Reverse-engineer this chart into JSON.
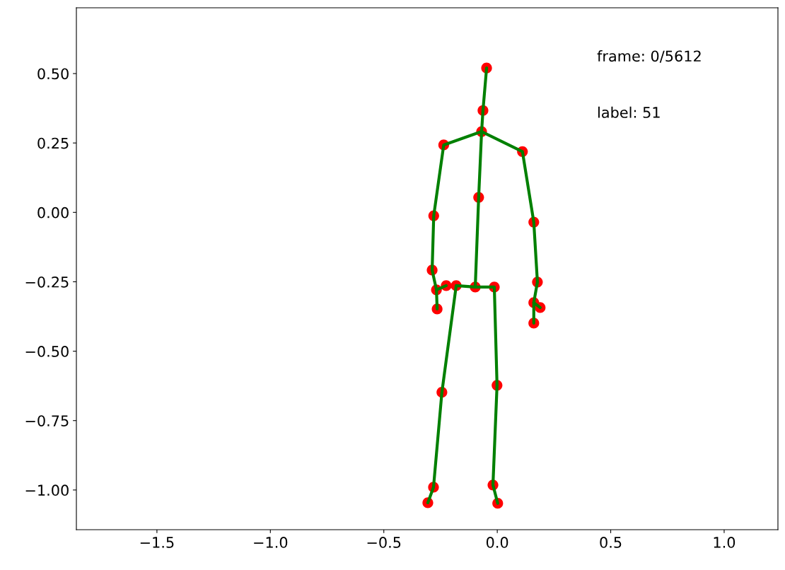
{
  "chart_data": {
    "type": "scatter",
    "xlim": [
      -1.855,
      1.237
    ],
    "ylim": [
      -1.143,
      0.737
    ],
    "xticks": [
      {
        "value": -1.5,
        "label": "−1.5"
      },
      {
        "value": -1.0,
        "label": "−1.0"
      },
      {
        "value": -0.5,
        "label": "−0.5"
      },
      {
        "value": 0.0,
        "label": "0.0"
      },
      0.5,
      {
        "value": 1.0,
        "label": "1.0"
      }
    ],
    "yticks": [
      {
        "value": -1.0,
        "label": "−1.00"
      },
      {
        "value": -0.75,
        "label": "−0.75"
      },
      {
        "value": -0.5,
        "label": "−0.50"
      },
      {
        "value": -0.25,
        "label": "−0.25"
      },
      {
        "value": 0.0,
        "label": "0.00"
      },
      {
        "value": 0.25,
        "label": "0.25"
      },
      {
        "value": 0.5,
        "label": "0.50"
      }
    ],
    "grid": false,
    "legend": false,
    "annotations": [
      "frame: 0/5612",
      "label: 51"
    ],
    "series": [
      {
        "type": "line",
        "color": "#008000",
        "x": [
          -0.047,
          -0.063,
          -0.069,
          -0.082,
          -0.097
        ],
        "values": [
          0.52,
          0.367,
          0.291,
          0.054,
          -0.269
        ]
      },
      {
        "type": "line",
        "color": "#008000",
        "x": [
          -0.069,
          -0.236,
          -0.28,
          -0.287,
          -0.268,
          -0.265
        ],
        "values": [
          0.291,
          0.243,
          -0.012,
          -0.208,
          -0.279,
          -0.348
        ]
      },
      {
        "type": "line",
        "color": "#008000",
        "x": [
          -0.268,
          -0.225
        ],
        "values": [
          -0.279,
          -0.264
        ]
      },
      {
        "type": "line",
        "color": "#008000",
        "x": [
          -0.069,
          0.111,
          0.161,
          0.177,
          0.161,
          0.161
        ],
        "values": [
          0.291,
          0.219,
          -0.035,
          -0.251,
          -0.325,
          -0.399
        ]
      },
      {
        "type": "line",
        "color": "#008000",
        "x": [
          0.161,
          0.189
        ],
        "values": [
          -0.325,
          -0.343
        ]
      },
      {
        "type": "line",
        "color": "#008000",
        "x": [
          -0.097,
          -0.181,
          -0.244,
          -0.281,
          -0.306
        ],
        "values": [
          -0.269,
          -0.264,
          -0.648,
          -0.99,
          -1.046
        ]
      },
      {
        "type": "line",
        "color": "#008000",
        "x": [
          -0.097,
          -0.013,
          -0.001,
          -0.019,
          0.002
        ],
        "values": [
          -0.269,
          -0.269,
          -0.623,
          -0.982,
          -1.048
        ]
      },
      {
        "color": "#ff0000",
        "x": [
          -0.047,
          -0.063,
          -0.069,
          -0.082,
          -0.097,
          -0.236,
          -0.28,
          -0.287,
          -0.268,
          -0.265,
          -0.225,
          0.111,
          0.161,
          0.177,
          0.161,
          0.161,
          0.189,
          -0.181,
          -0.244,
          -0.281,
          -0.306,
          -0.013,
          -0.001,
          -0.019,
          0.002
        ],
        "values": [
          0.52,
          0.367,
          0.291,
          0.054,
          -0.269,
          0.243,
          -0.012,
          -0.208,
          -0.279,
          -0.348,
          -0.264,
          0.219,
          -0.035,
          -0.251,
          -0.325,
          -0.399,
          -0.343,
          -0.264,
          -0.648,
          -0.99,
          -1.046,
          -0.269,
          -0.623,
          -0.982,
          -1.048
        ]
      }
    ]
  }
}
